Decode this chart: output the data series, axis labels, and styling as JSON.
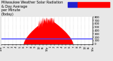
{
  "title": "Milwaukee Weather Solar Radiation\n& Day Average\nper Minute\n(Today)",
  "background_color": "#e8e8e8",
  "plot_bg_color": "#ffffff",
  "grid_color": "#aaaaaa",
  "bar_color": "#ff0000",
  "avg_line_color": "#4444ff",
  "avg_line_y": 150,
  "ylim": [
    0,
    800
  ],
  "xlim": [
    0,
    1440
  ],
  "legend_blue_color": "#2222cc",
  "legend_red_color": "#ff0000",
  "peak_minute": 740,
  "peak_value": 780,
  "rise_minute": 350,
  "set_minute": 1130,
  "title_fontsize": 3.5,
  "tick_fontsize": 2.8,
  "ytick_values": [
    0,
    100,
    200,
    300,
    400,
    500,
    600,
    700,
    800
  ],
  "xtick_positions": [
    0,
    60,
    120,
    180,
    240,
    300,
    360,
    420,
    480,
    540,
    600,
    660,
    720,
    780,
    840,
    900,
    960,
    1020,
    1080,
    1140,
    1200,
    1260,
    1320,
    1380,
    1440
  ],
  "xtick_labels": [
    "12a",
    "1",
    "2",
    "3",
    "4",
    "5",
    "6",
    "7",
    "8",
    "9",
    "10",
    "11",
    "12p",
    "1",
    "2",
    "3",
    "4",
    "5",
    "6",
    "7",
    "8",
    "9",
    "10",
    "11",
    "12a"
  ]
}
